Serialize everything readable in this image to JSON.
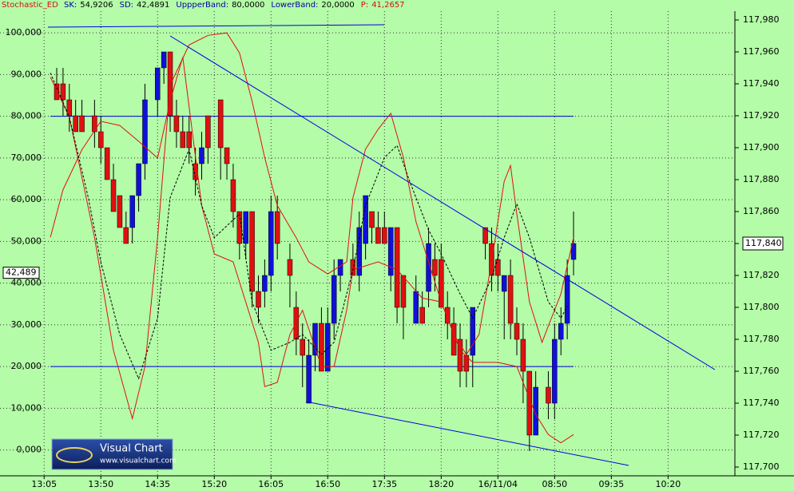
{
  "chart_data": {
    "type": "candlestick",
    "indicator": "Stochastic_ED",
    "readouts": [
      {
        "label": "SK:",
        "value": "54,9206"
      },
      {
        "label": "SD:",
        "value": "42,4891"
      },
      {
        "label": "UppperBand:",
        "value": "80,0000"
      },
      {
        "label": "LowerBand:",
        "value": "20,0000"
      },
      {
        "label": "P:",
        "value": "41,2657"
      }
    ],
    "xlim": [
      -7,
      109.6
    ],
    "xticks": [
      {
        "value": 0,
        "label": "13:05"
      },
      {
        "value": 9,
        "label": "13:50"
      },
      {
        "value": 18,
        "label": "14:35"
      },
      {
        "value": 27,
        "label": "15:20"
      },
      {
        "value": 36,
        "label": "16:05"
      },
      {
        "value": 45,
        "label": "16:50"
      },
      {
        "value": 54,
        "label": "17:35"
      },
      {
        "value": 63,
        "label": "18:20"
      },
      {
        "value": 72,
        "label": "16/11/04"
      },
      {
        "value": 81,
        "label": "08:50"
      },
      {
        "value": 90,
        "label": "09:35"
      },
      {
        "value": 99,
        "label": "10:20"
      }
    ],
    "ylim": [
      -6.2,
      105.2
    ],
    "yticks": [
      {
        "value": 0,
        "label": "0,000"
      },
      {
        "value": 10,
        "label": "10,000"
      },
      {
        "value": 20,
        "label": "20,000"
      },
      {
        "value": 30,
        "label": "30,000"
      },
      {
        "value": 40,
        "label": "40,000"
      },
      {
        "value": 50,
        "label": "50,000"
      },
      {
        "value": 60,
        "label": "60,000"
      },
      {
        "value": 70,
        "label": "70,000"
      },
      {
        "value": 80,
        "label": "80,000"
      },
      {
        "value": 90,
        "label": "90,000"
      },
      {
        "value": 100,
        "label": "100,000"
      }
    ],
    "y2lim": [
      117694.5,
      117985.5
    ],
    "y2ticks": [
      {
        "value": 117700,
        "label": "117,700"
      },
      {
        "value": 117720,
        "label": "117,720"
      },
      {
        "value": 117740,
        "label": "117,740"
      },
      {
        "value": 117760,
        "label": "117,760"
      },
      {
        "value": 117780,
        "label": "117,780"
      },
      {
        "value": 117800,
        "label": "117,800"
      },
      {
        "value": 117820,
        "label": "117,820"
      },
      {
        "value": 117840,
        "label": "117,840"
      },
      {
        "value": 117860,
        "label": "117,860"
      },
      {
        "value": 117880,
        "label": "117,880"
      },
      {
        "value": 117900,
        "label": "117,900"
      },
      {
        "value": 117920,
        "label": "117,920"
      },
      {
        "value": 117940,
        "label": "117,940"
      },
      {
        "value": 117960,
        "label": "117,960"
      },
      {
        "value": 117980,
        "label": "117,980"
      }
    ],
    "grid": true,
    "bands": [
      80,
      20
    ],
    "band_color": "#0000e0",
    "current_left": {
      "value": 42.489,
      "label": "42,489"
    },
    "current_right": {
      "value": 117840,
      "label": "117,840"
    },
    "candles": {
      "axis": "y2",
      "up_color": "#1010d8",
      "down_color": "#e01010",
      "x": [
        2,
        3,
        4,
        5,
        6,
        8,
        9,
        10,
        11,
        12,
        13,
        14,
        15,
        16,
        18,
        19,
        20,
        21,
        22,
        23,
        24,
        25,
        26,
        28,
        29,
        30,
        31,
        32,
        33,
        34,
        35,
        36,
        37,
        39,
        40,
        41,
        42,
        43,
        44,
        45,
        46,
        47,
        49,
        50,
        51,
        52,
        53,
        54,
        55,
        56,
        57,
        59,
        60,
        61,
        62,
        63,
        64,
        65,
        66,
        67,
        68,
        70,
        71,
        72,
        73,
        74,
        75,
        76,
        77,
        78,
        80,
        81,
        82,
        83,
        84
      ],
      "open": [
        117940,
        117940,
        117930,
        117920,
        117920,
        117920,
        117910,
        117900,
        117880,
        117870,
        117850,
        117850,
        117870,
        117890,
        117930,
        117950,
        117960,
        117920,
        117910,
        117910,
        117890,
        117890,
        117920,
        117930,
        117900,
        117880,
        117860,
        117840,
        117860,
        117810,
        117810,
        117820,
        117860,
        117830,
        117800,
        117780,
        117740,
        117770,
        117790,
        117760,
        117790,
        117820,
        117830,
        117820,
        117840,
        117860,
        117850,
        117850,
        117820,
        117850,
        117820,
        117790,
        117800,
        117810,
        117830,
        117830,
        117800,
        117790,
        117780,
        117770,
        117770,
        117850,
        117840,
        117830,
        117810,
        117820,
        117790,
        117780,
        117760,
        117720,
        117750,
        117740,
        117780,
        117790,
        117830
      ],
      "high": [
        117950,
        117950,
        117940,
        117930,
        117930,
        117930,
        117920,
        117900,
        117890,
        117870,
        117860,
        117870,
        117890,
        117940,
        117950,
        117960,
        117960,
        117930,
        117920,
        117920,
        117900,
        117910,
        117920,
        117930,
        117900,
        117890,
        117860,
        117860,
        117860,
        117820,
        117830,
        117870,
        117870,
        117840,
        117810,
        117790,
        117780,
        117790,
        117800,
        117800,
        117830,
        117830,
        117840,
        117860,
        117870,
        117860,
        117860,
        117860,
        117850,
        117850,
        117820,
        117820,
        117810,
        117850,
        117840,
        117840,
        117810,
        117800,
        117790,
        117780,
        117800,
        117850,
        117850,
        117840,
        117820,
        117830,
        117800,
        117790,
        117760,
        117760,
        117760,
        117790,
        117800,
        117830,
        117860
      ],
      "low": [
        117930,
        117920,
        117910,
        117910,
        117910,
        117900,
        117890,
        117880,
        117860,
        117850,
        117840,
        117840,
        117860,
        117880,
        117920,
        117940,
        117910,
        117900,
        117900,
        117890,
        117870,
        117880,
        117890,
        117880,
        117880,
        117850,
        117830,
        117830,
        117800,
        117790,
        117800,
        117810,
        117830,
        117800,
        117770,
        117750,
        117740,
        117760,
        117760,
        117760,
        117780,
        117810,
        117820,
        117810,
        117830,
        117840,
        117840,
        117840,
        117810,
        117790,
        117780,
        117790,
        117790,
        117800,
        117810,
        117800,
        117780,
        117770,
        117750,
        117750,
        117750,
        117830,
        117810,
        117810,
        117780,
        117780,
        117770,
        117740,
        117710,
        117720,
        117730,
        117730,
        117770,
        117780,
        117820
      ],
      "close": [
        117930,
        117930,
        117920,
        117910,
        117910,
        117910,
        117900,
        117880,
        117860,
        117850,
        117840,
        117870,
        117890,
        117930,
        117950,
        117960,
        117920,
        117910,
        117900,
        117900,
        117880,
        117900,
        117900,
        117900,
        117890,
        117860,
        117840,
        117860,
        117810,
        117800,
        117820,
        117860,
        117840,
        117820,
        117780,
        117770,
        117770,
        117790,
        117760,
        117790,
        117820,
        117830,
        117820,
        117850,
        117870,
        117850,
        117840,
        117840,
        117850,
        117800,
        117800,
        117810,
        117790,
        117840,
        117820,
        117800,
        117790,
        117770,
        117760,
        117760,
        117800,
        117840,
        117820,
        117820,
        117820,
        117790,
        117780,
        117760,
        117720,
        117750,
        117740,
        117780,
        117790,
        117820,
        117840
      ]
    },
    "lines": [
      {
        "color": "#e01010",
        "dash": false,
        "x": [
          1,
          4,
          8,
          11,
          14,
          16,
          18,
          20,
          23,
          26,
          29,
          31,
          33,
          35,
          37,
          40,
          42,
          45,
          48,
          49,
          51,
          53,
          55,
          57,
          59,
          61,
          63,
          65,
          67,
          69,
          71,
          73,
          74,
          75,
          77,
          79,
          80,
          82,
          84
        ],
        "values": [
          89.4,
          79.8,
          50.9,
          23.9,
          7.5,
          20.0,
          50.9,
          87.5,
          97.1,
          99.4,
          100,
          95.2,
          83.6,
          70.1,
          58.6,
          50.9,
          45.1,
          42.2,
          45.1,
          60.5,
          72.1,
          76.9,
          80.7,
          70.1,
          54.7,
          45.1,
          35.5,
          27.7,
          22.9,
          27.7,
          45.1,
          64.4,
          68.2,
          56.6,
          35.5,
          25.8,
          29.7,
          37.4,
          50.9
        ]
      },
      {
        "color": "#e01010",
        "dash": false,
        "x": [
          1,
          3,
          6,
          9,
          12,
          15,
          18,
          20,
          22,
          25,
          27,
          30,
          34,
          35,
          37,
          39,
          41,
          44,
          46,
          48,
          49,
          53,
          56,
          60,
          63,
          66,
          68,
          72,
          75,
          78,
          80,
          82,
          84
        ],
        "values": [
          51,
          62.4,
          72,
          78.8,
          77.8,
          74,
          70,
          83.6,
          94.2,
          58.6,
          47,
          45.1,
          25.8,
          15.2,
          16.2,
          27.7,
          33.5,
          20,
          20,
          33.5,
          43.2,
          45.1,
          43.2,
          36.4,
          35.5,
          23.9,
          21,
          21,
          20,
          8.5,
          3.7,
          1.7,
          3.7
        ]
      },
      {
        "color": "#000000",
        "dash": true,
        "x": [
          1,
          4,
          7,
          9,
          12,
          15,
          18,
          20,
          23,
          25,
          27,
          31,
          33,
          36,
          39,
          41,
          44,
          46,
          49,
          51,
          54,
          56,
          58,
          61,
          63,
          66,
          68,
          71,
          73,
          75,
          77,
          80,
          82,
          83
        ],
        "values": [
          90.4,
          79.8,
          60.5,
          45.1,
          27.7,
          17.1,
          31.6,
          60.5,
          72.1,
          58.6,
          50.9,
          56.6,
          35.5,
          23.9,
          25.8,
          27.7,
          22.9,
          25.8,
          43.2,
          58.6,
          70.1,
          73,
          64.4,
          52.8,
          47,
          37.4,
          31.6,
          41.2,
          50.9,
          59,
          50.9,
          35.5,
          31.6,
          34.5
        ]
      }
    ],
    "logo": {
      "title": "Visual Chart",
      "url": "www.visualchart.com"
    }
  }
}
